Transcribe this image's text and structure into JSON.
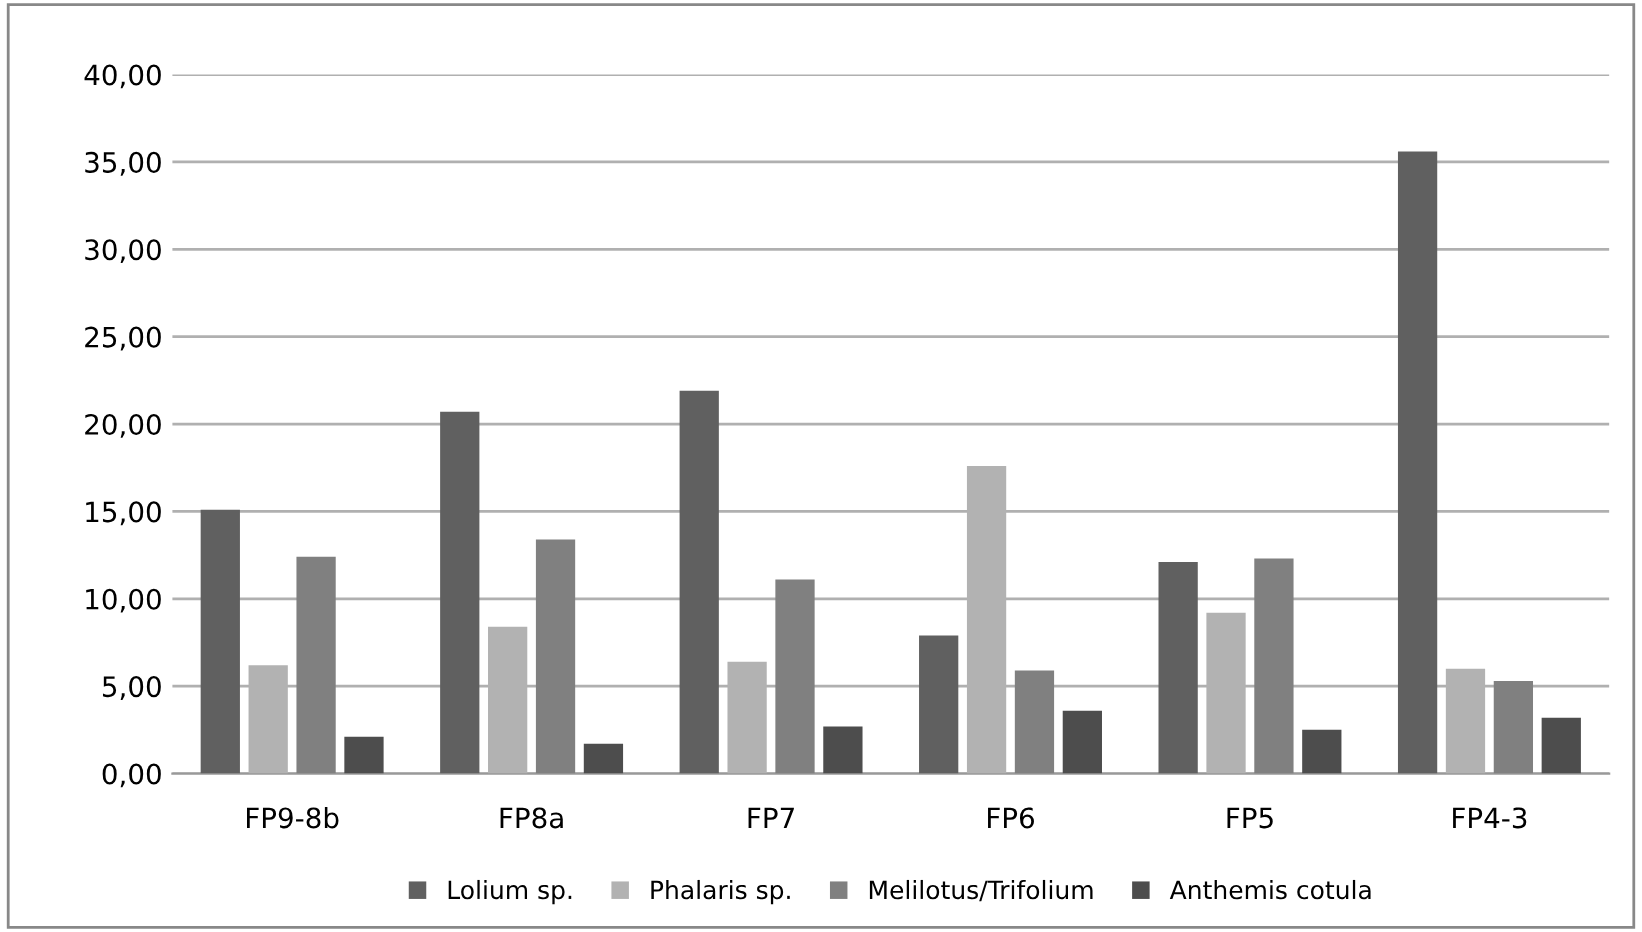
{
  "chart_data": {
    "type": "bar",
    "categories": [
      "FP9-8b",
      "FP8a",
      "FP7",
      "FP6",
      "FP5",
      "FP4-3"
    ],
    "series": [
      {
        "name": "Lolium sp.",
        "color": "#606060",
        "values": [
          15.1,
          20.7,
          21.9,
          7.9,
          12.1,
          35.6
        ]
      },
      {
        "name": "Phalaris sp.",
        "color": "#b2b2b2",
        "values": [
          6.2,
          8.4,
          6.4,
          17.6,
          9.2,
          6.0
        ]
      },
      {
        "name": "Melilotus/Trifolium",
        "color": "#808080",
        "values": [
          12.4,
          13.4,
          11.1,
          5.9,
          12.3,
          5.3
        ]
      },
      {
        "name": "Anthemis cotula",
        "color": "#4d4d4d",
        "values": [
          2.1,
          1.7,
          2.7,
          3.6,
          2.5,
          3.2
        ]
      }
    ],
    "ylim": [
      0,
      40
    ],
    "yticks": [
      {
        "value": 0,
        "label": "0,00"
      },
      {
        "value": 5,
        "label": "5,00"
      },
      {
        "value": 10,
        "label": "10,00"
      },
      {
        "value": 15,
        "label": "15,00"
      },
      {
        "value": 20,
        "label": "20,00"
      },
      {
        "value": 25,
        "label": "25,00"
      },
      {
        "value": 30,
        "label": "30,00"
      },
      {
        "value": 35,
        "label": "35,00"
      },
      {
        "value": 40,
        "label": "40,00"
      }
    ],
    "grid": "y",
    "legend": "bottom"
  }
}
